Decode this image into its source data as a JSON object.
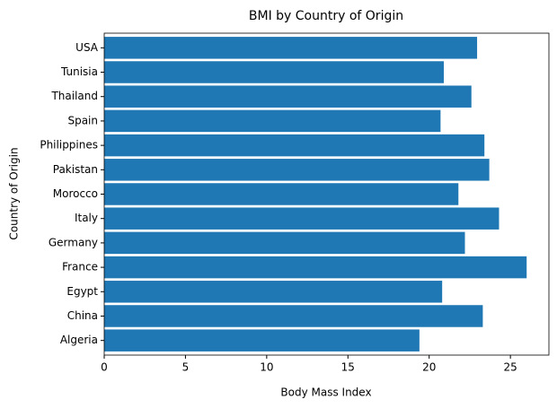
{
  "chart_data": {
    "type": "bar",
    "orientation": "horizontal",
    "title": "BMI by Country of Origin",
    "x_label": "Body Mass Index",
    "y_label": "Country of Origin",
    "categories": [
      "Algeria",
      "China",
      "Egypt",
      "France",
      "Germany",
      "Italy",
      "Morocco",
      "Pakistan",
      "Philippines",
      "Spain",
      "Thailand",
      "Tunisia",
      "USA"
    ],
    "values": [
      19.4,
      23.3,
      20.8,
      26.0,
      22.2,
      24.3,
      21.8,
      23.7,
      23.4,
      20.7,
      22.6,
      20.9,
      22.95
    ],
    "color": "#1f77b4",
    "xlim": [
      0,
      27.37
    ],
    "xticks": [
      0,
      5,
      10,
      15,
      20,
      25
    ],
    "grid": false
  }
}
